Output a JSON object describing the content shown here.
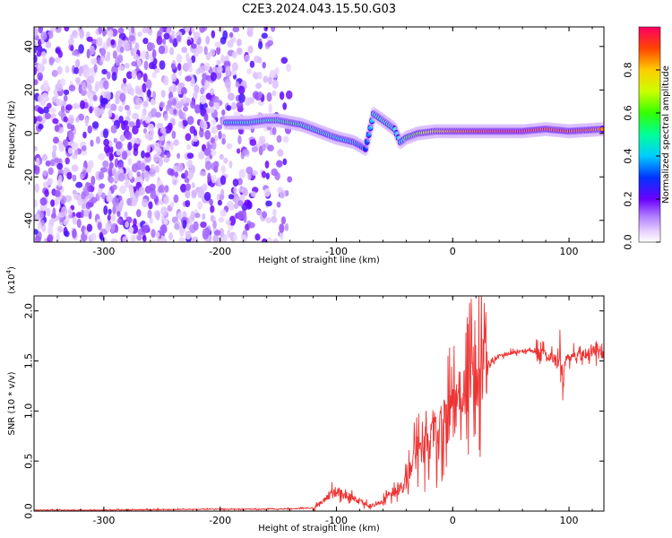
{
  "figure": {
    "title": "C2E3.2024.043.15.50.G03"
  },
  "chart_data": [
    {
      "type": "heatmap",
      "name": "spectrogram",
      "xlabel": "Height of straight line (km)",
      "ylabel": "Frequency (Hz)",
      "xlim": [
        -360,
        130
      ],
      "ylim": [
        -50,
        49
      ],
      "xticks": [
        -300,
        -200,
        -100,
        0,
        100
      ],
      "yticks": [
        -40,
        -20,
        0,
        20,
        40
      ],
      "colorbar": {
        "label": "Normalized spectral amplitude",
        "range": [
          0,
          1
        ],
        "ticks": [
          "0.0",
          "0.2",
          "0.4",
          "0.6",
          "0.8"
        ],
        "colormap": "rainbow"
      },
      "noise_region": {
        "x_from": -360,
        "x_to": -140,
        "amplitude": 0.1
      },
      "signal_trace": [
        {
          "x": -195,
          "y": 5,
          "amp": 0.4
        },
        {
          "x": -175,
          "y": 5,
          "amp": 0.45
        },
        {
          "x": -160,
          "y": 6,
          "amp": 0.5
        },
        {
          "x": -150,
          "y": 6,
          "amp": 0.5
        },
        {
          "x": -140,
          "y": 5,
          "amp": 0.55
        },
        {
          "x": -130,
          "y": 4,
          "amp": 0.5
        },
        {
          "x": -120,
          "y": 2,
          "amp": 0.5
        },
        {
          "x": -110,
          "y": 0,
          "amp": 0.45
        },
        {
          "x": -100,
          "y": -2,
          "amp": 0.45
        },
        {
          "x": -85,
          "y": -4,
          "amp": 0.4
        },
        {
          "x": -75,
          "y": -7,
          "amp": 0.3
        },
        {
          "x": -68,
          "y": 9,
          "amp": 0.45
        },
        {
          "x": -60,
          "y": 6,
          "amp": 0.5
        },
        {
          "x": -50,
          "y": 2,
          "amp": 0.45
        },
        {
          "x": -45,
          "y": -4,
          "amp": 0.4
        },
        {
          "x": -40,
          "y": -2,
          "amp": 0.55
        },
        {
          "x": -30,
          "y": 0,
          "amp": 0.65
        },
        {
          "x": -15,
          "y": 1,
          "amp": 0.75
        },
        {
          "x": 0,
          "y": 1,
          "amp": 0.85
        },
        {
          "x": 20,
          "y": 1,
          "amp": 0.9
        },
        {
          "x": 40,
          "y": 1,
          "amp": 0.95
        },
        {
          "x": 60,
          "y": 1,
          "amp": 0.95
        },
        {
          "x": 80,
          "y": 2,
          "amp": 0.9
        },
        {
          "x": 100,
          "y": 1,
          "amp": 0.9
        },
        {
          "x": 130,
          "y": 2,
          "amp": 0.85
        }
      ]
    },
    {
      "type": "line",
      "name": "snr",
      "xlabel": "Height of straight line (km)",
      "ylabel": "SNR (10 * v/v)",
      "yscale_label": "(x10",
      "yscale_exp": "4",
      "yscale_suffix": ")",
      "xlim": [
        -360,
        130
      ],
      "ylim": [
        0,
        2.15
      ],
      "xticks": [
        -300,
        -200,
        -100,
        0,
        100
      ],
      "yticks": [
        "0.0",
        "0.5",
        "1.0",
        "1.5",
        "2.0"
      ],
      "color": "#ee3333",
      "series": [
        {
          "x": [
            -360,
            -300,
            -200,
            -150,
            -120,
            -110,
            -100,
            -90,
            -80,
            -70,
            -60,
            -50,
            -40,
            -35,
            -30,
            -20,
            -10,
            0,
            10,
            20,
            30,
            40,
            50,
            60,
            70,
            80,
            90,
            95,
            100,
            110,
            120,
            130
          ],
          "y": [
            0.01,
            0.01,
            0.02,
            0.02,
            0.03,
            0.12,
            0.2,
            0.15,
            0.1,
            0.05,
            0.1,
            0.18,
            0.3,
            0.5,
            0.6,
            0.7,
            0.85,
            1.0,
            1.15,
            1.35,
            1.45,
            1.55,
            1.58,
            1.6,
            1.6,
            1.55,
            1.5,
            1.45,
            1.55,
            1.55,
            1.6,
            1.55
          ]
        }
      ]
    }
  ]
}
